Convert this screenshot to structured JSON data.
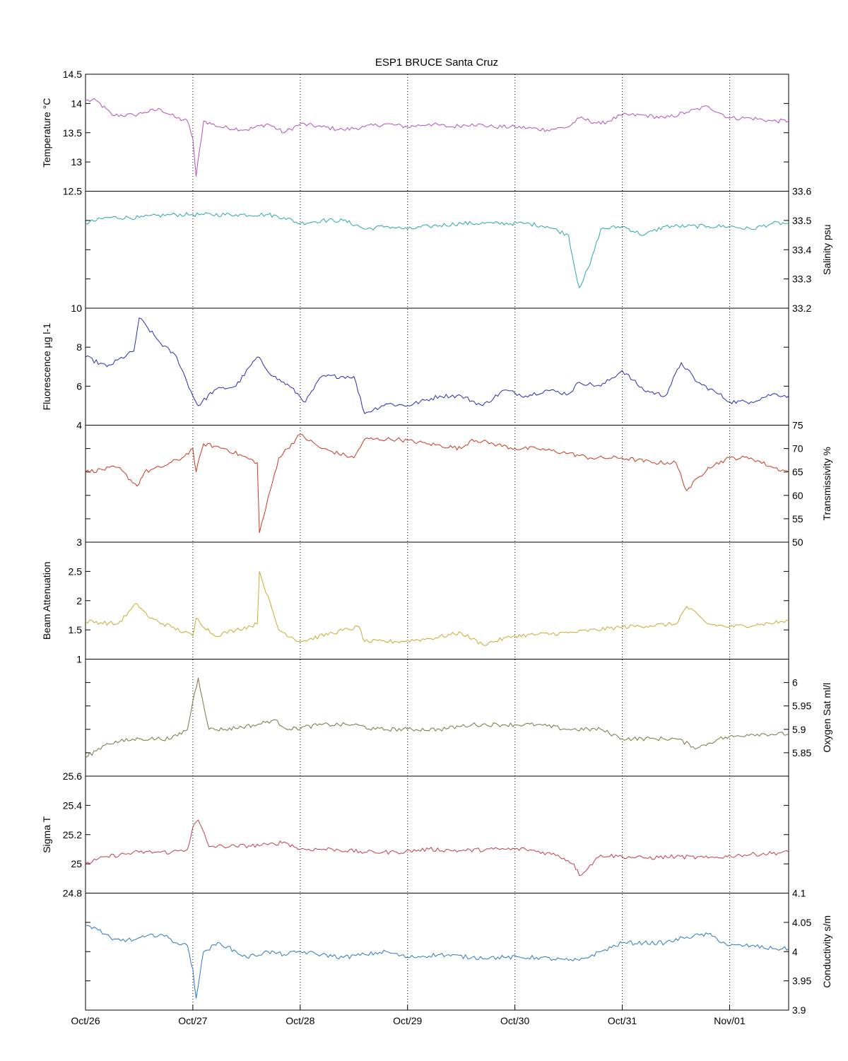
{
  "figure": {
    "title": "ESP1 BRUCE Santa Cruz",
    "x_ticks": [
      "Oct/26",
      "Oct/27",
      "Oct/28",
      "Oct/29",
      "Oct/30",
      "Oct/31",
      "Nov/01"
    ]
  },
  "chart_data": [
    {
      "type": "line",
      "ylabel": "Temperature °C",
      "axis_side": "left",
      "ylim": [
        12.5,
        14.5
      ],
      "yticks": [
        "12.5",
        "13",
        "13.5",
        "14",
        "14.5"
      ],
      "color": "#b44fba",
      "x": [
        0,
        0.1,
        0.25,
        0.45,
        0.55,
        0.7,
        0.85,
        0.95,
        1.0,
        1.03,
        1.1,
        1.25,
        1.5,
        1.7,
        1.85,
        2.0,
        2.2,
        2.4,
        2.6,
        2.8,
        3.0,
        3.2,
        3.4,
        3.6,
        3.8,
        4.0,
        4.3,
        4.5,
        4.6,
        4.8,
        5.0,
        5.2,
        5.4,
        5.6,
        5.8,
        6.0,
        6.2,
        6.4,
        6.55
      ],
      "series": [
        {
          "values": [
            14.05,
            14.05,
            13.8,
            13.8,
            13.85,
            13.9,
            13.75,
            13.7,
            13.4,
            12.75,
            13.7,
            13.6,
            13.55,
            13.65,
            13.5,
            13.65,
            13.6,
            13.55,
            13.6,
            13.65,
            13.6,
            13.65,
            13.6,
            13.65,
            13.6,
            13.6,
            13.55,
            13.6,
            13.75,
            13.65,
            13.8,
            13.8,
            13.75,
            13.85,
            13.95,
            13.75,
            13.75,
            13.7,
            13.7
          ]
        }
      ]
    },
    {
      "type": "line",
      "ylabel": "Salinity psu",
      "axis_side": "right",
      "ylim": [
        33.2,
        33.6
      ],
      "yticks": [
        "33.2",
        "33.3",
        "33.4",
        "33.5",
        "33.6"
      ],
      "color": "#2aa7a9",
      "x": [
        0,
        0.2,
        0.5,
        0.8,
        1.0,
        1.1,
        1.4,
        1.7,
        1.85,
        2.0,
        2.2,
        2.4,
        2.55,
        2.6,
        2.8,
        3.0,
        3.2,
        3.5,
        3.8,
        4.1,
        4.3,
        4.5,
        4.55,
        4.6,
        4.7,
        4.8,
        5.0,
        5.2,
        5.4,
        5.6,
        5.8,
        6.0,
        6.2,
        6.4,
        6.55
      ],
      "series": [
        {
          "values": [
            33.49,
            33.51,
            33.51,
            33.52,
            33.52,
            33.52,
            33.52,
            33.52,
            33.51,
            33.49,
            33.5,
            33.5,
            33.48,
            33.47,
            33.48,
            33.47,
            33.48,
            33.49,
            33.49,
            33.49,
            33.48,
            33.45,
            33.35,
            33.27,
            33.35,
            33.47,
            33.48,
            33.45,
            33.48,
            33.48,
            33.48,
            33.48,
            33.47,
            33.49,
            33.49
          ]
        }
      ]
    },
    {
      "type": "line",
      "ylabel": "Fluorescence µg l-1",
      "axis_side": "left",
      "ylim": [
        4,
        10
      ],
      "yticks": [
        "4",
        "6",
        "8",
        "10"
      ],
      "color": "#2a2ab5",
      "x": [
        0,
        0.2,
        0.45,
        0.5,
        0.7,
        0.85,
        1.0,
        1.05,
        1.2,
        1.4,
        1.6,
        1.75,
        1.9,
        2.05,
        2.2,
        2.5,
        2.6,
        2.8,
        3.0,
        3.3,
        3.5,
        3.7,
        3.9,
        4.1,
        4.3,
        4.5,
        4.6,
        4.8,
        5.0,
        5.2,
        5.4,
        5.55,
        5.7,
        5.9,
        6.0,
        6.2,
        6.4,
        6.55
      ],
      "series": [
        {
          "values": [
            7.5,
            7.0,
            7.8,
            9.5,
            8.2,
            7.5,
            5.5,
            5.0,
            5.8,
            6.0,
            7.5,
            6.5,
            6.0,
            5.2,
            6.5,
            6.5,
            4.6,
            5.1,
            5.0,
            5.5,
            5.5,
            5.0,
            5.8,
            5.5,
            5.8,
            5.6,
            6.2,
            6.0,
            6.8,
            5.8,
            5.5,
            7.2,
            6.2,
            5.6,
            5.2,
            5.2,
            5.6,
            5.5
          ]
        }
      ]
    },
    {
      "type": "line",
      "ylabel": "Transmissivity %",
      "axis_side": "right",
      "ylim": [
        50,
        75
      ],
      "yticks": [
        "50",
        "55",
        "60",
        "65",
        "70",
        "75"
      ],
      "color": "#c8381c",
      "x": [
        0,
        0.3,
        0.48,
        0.55,
        0.7,
        0.9,
        1.0,
        1.03,
        1.1,
        1.3,
        1.6,
        1.62,
        1.8,
        2.0,
        2.2,
        2.5,
        2.6,
        2.9,
        3.2,
        3.5,
        3.6,
        3.8,
        4.0,
        4.2,
        4.5,
        4.7,
        5.0,
        5.3,
        5.5,
        5.6,
        5.8,
        6.0,
        6.2,
        6.4,
        6.55
      ],
      "series": [
        {
          "values": [
            65,
            66,
            62,
            65,
            66,
            68,
            70,
            65,
            71,
            70,
            67,
            52,
            68,
            73,
            70,
            68,
            72,
            72,
            71,
            70,
            72,
            71,
            70,
            70,
            69,
            68,
            68,
            67,
            67,
            61,
            66,
            68,
            68,
            66,
            65
          ]
        }
      ]
    },
    {
      "type": "line",
      "ylabel": "Beam Attenuation",
      "axis_side": "left",
      "ylim": [
        1,
        3
      ],
      "yticks": [
        "1",
        "1.5",
        "2",
        "2.5",
        "3"
      ],
      "color": "#c9aa2e",
      "x": [
        0,
        0.3,
        0.48,
        0.6,
        0.8,
        1.0,
        1.03,
        1.2,
        1.4,
        1.6,
        1.62,
        1.8,
        2.0,
        2.3,
        2.55,
        2.6,
        2.9,
        3.2,
        3.5,
        3.7,
        4.0,
        4.5,
        5.0,
        5.5,
        5.6,
        5.8,
        6.0,
        6.3,
        6.55
      ],
      "series": [
        {
          "values": [
            1.65,
            1.6,
            1.95,
            1.7,
            1.55,
            1.4,
            1.7,
            1.4,
            1.5,
            1.6,
            2.5,
            1.5,
            1.3,
            1.45,
            1.55,
            1.3,
            1.3,
            1.35,
            1.45,
            1.25,
            1.4,
            1.45,
            1.55,
            1.6,
            1.9,
            1.6,
            1.55,
            1.6,
            1.65
          ]
        }
      ]
    },
    {
      "type": "line",
      "ylabel": "Oxygen Sat ml/l",
      "axis_side": "right",
      "ylim": [
        5.8,
        6.05
      ],
      "yticks": [
        "5.85",
        "5.9",
        "5.95",
        "6"
      ],
      "color": "#7a7440",
      "x": [
        0,
        0.2,
        0.5,
        0.8,
        0.95,
        1.0,
        1.05,
        1.15,
        1.3,
        1.6,
        1.75,
        1.9,
        2.2,
        2.5,
        2.7,
        3.0,
        3.3,
        3.6,
        3.9,
        4.2,
        4.5,
        4.8,
        5.0,
        5.3,
        5.5,
        5.7,
        5.9,
        6.2,
        6.55
      ],
      "series": [
        {
          "values": [
            5.84,
            5.87,
            5.88,
            5.88,
            5.9,
            5.96,
            6.01,
            5.9,
            5.9,
            5.91,
            5.92,
            5.9,
            5.91,
            5.91,
            5.9,
            5.9,
            5.9,
            5.91,
            5.91,
            5.91,
            5.9,
            5.9,
            5.88,
            5.88,
            5.88,
            5.86,
            5.88,
            5.89,
            5.89
          ]
        }
      ]
    },
    {
      "type": "line",
      "ylabel": "Sigma T",
      "axis_side": "left",
      "ylim": [
        24.8,
        25.6
      ],
      "yticks": [
        "24.8",
        "25",
        "25.2",
        "25.4",
        "25.6"
      ],
      "color": "#c73a50",
      "x": [
        0,
        0.2,
        0.5,
        0.8,
        0.95,
        1.0,
        1.05,
        1.15,
        1.4,
        1.7,
        1.85,
        2.0,
        2.3,
        2.6,
        2.9,
        3.2,
        3.5,
        3.8,
        4.1,
        4.4,
        4.55,
        4.6,
        4.8,
        5.0,
        5.2,
        5.5,
        5.8,
        6.1,
        6.55
      ],
      "series": [
        {
          "values": [
            25.0,
            25.05,
            25.08,
            25.08,
            25.1,
            25.25,
            25.3,
            25.12,
            25.12,
            25.13,
            25.15,
            25.1,
            25.1,
            25.08,
            25.08,
            25.1,
            25.09,
            25.1,
            25.1,
            25.06,
            25.0,
            24.92,
            25.06,
            25.05,
            25.04,
            25.05,
            25.04,
            25.06,
            25.08
          ]
        }
      ]
    },
    {
      "type": "line",
      "ylabel": "Conductivity s/m",
      "axis_side": "right",
      "ylim": [
        3.9,
        4.1
      ],
      "yticks": [
        "3.9",
        "3.95",
        "4",
        "4.05",
        "4.1"
      ],
      "color": "#2a78c6",
      "x": [
        0,
        0.1,
        0.25,
        0.45,
        0.55,
        0.7,
        0.85,
        0.95,
        1.0,
        1.03,
        1.1,
        1.25,
        1.5,
        1.7,
        1.85,
        2.0,
        2.2,
        2.4,
        2.6,
        2.8,
        3.0,
        3.3,
        3.6,
        3.9,
        4.2,
        4.5,
        4.6,
        4.8,
        5.0,
        5.2,
        5.4,
        5.6,
        5.8,
        6.0,
        6.2,
        6.4,
        6.55
      ],
      "series": [
        {
          "values": [
            4.045,
            4.04,
            4.02,
            4.02,
            4.025,
            4.03,
            4.015,
            4.01,
            3.97,
            3.92,
            4.0,
            4.015,
            3.99,
            4.0,
            3.995,
            4.0,
            3.995,
            3.99,
            3.995,
            4.0,
            3.99,
            3.995,
            3.99,
            3.99,
            3.99,
            3.985,
            3.985,
            4.0,
            4.015,
            4.015,
            4.015,
            4.025,
            4.03,
            4.01,
            4.01,
            4.005,
            4.005
          ]
        }
      ]
    }
  ]
}
